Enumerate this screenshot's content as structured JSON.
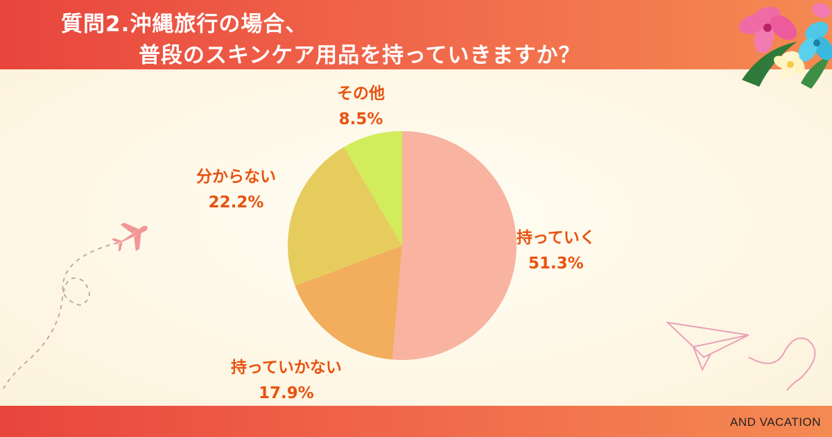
{
  "header": {
    "title_line1": "質問2.沖縄旅行の場合、",
    "title_line2": "普段のスキンケア用品を持っていきますか？"
  },
  "footer": {
    "brand": "AND VACATION"
  },
  "chart_data": {
    "type": "pie",
    "start_angle_deg": 0,
    "direction": "clockwise",
    "slices": [
      {
        "label": "持っていく",
        "value": 51.3,
        "value_label": "51.3%",
        "color": "#f8b3a1"
      },
      {
        "label": "持っていかない",
        "value": 17.9,
        "value_label": "17.9%",
        "color": "#f2ad5d"
      },
      {
        "label": "分からない",
        "value": 22.2,
        "value_label": "22.2%",
        "color": "#e6cc5d"
      },
      {
        "label": "その他",
        "value": 8.5,
        "value_label": "8.5%",
        "color": "#d2ec5b"
      }
    ]
  },
  "decorations": {
    "airplane_color": "#f29696",
    "dashed_path_color": "#c9a7a0",
    "paper_plane_color": "#e9a0b8",
    "flower_icons": [
      "hibiscus-pink-icon",
      "hibiscus-blue-icon",
      "plumeria-icon",
      "palm-leaf-icon"
    ]
  }
}
